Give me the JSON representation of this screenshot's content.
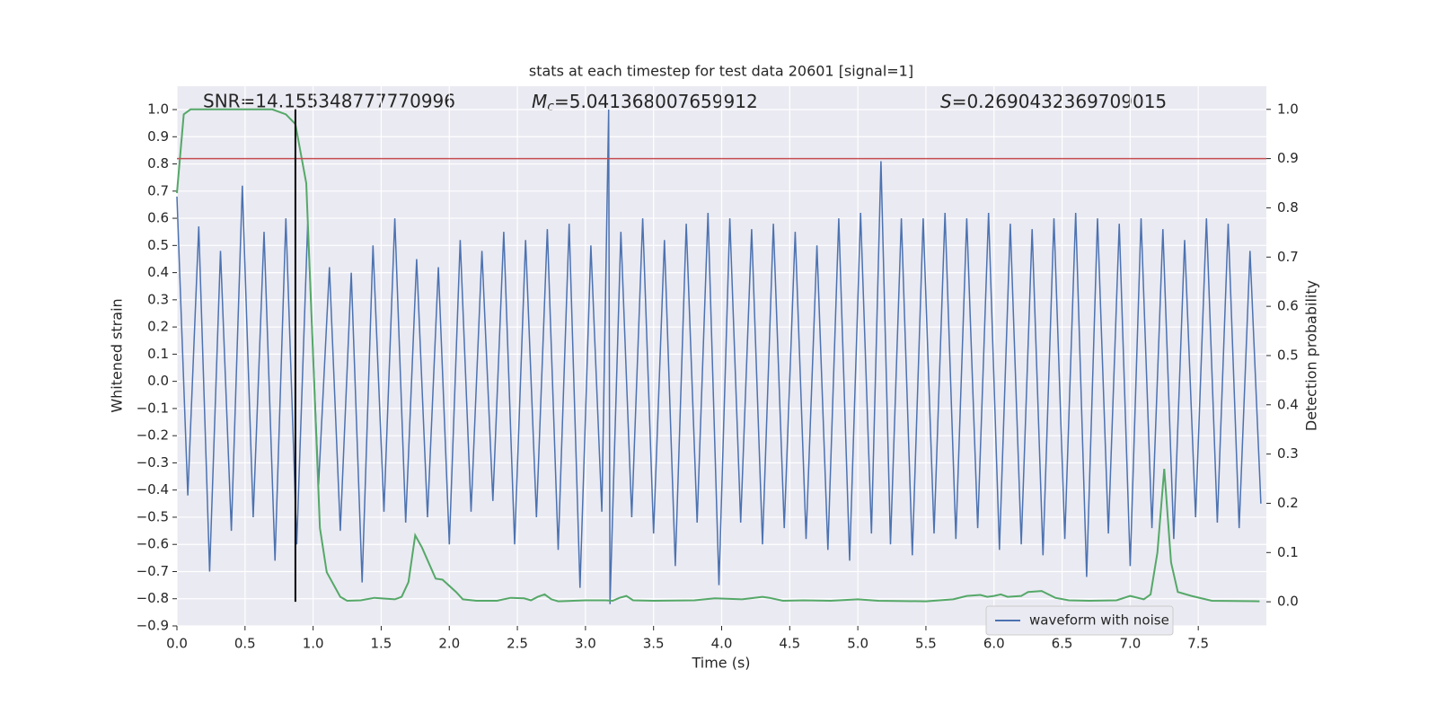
{
  "chart_data": {
    "type": "line",
    "title": "stats at each timestep for test data 20601 [signal=1]",
    "xlabel": "Time (s)",
    "ylabel": "Whitened strain",
    "y2label": "Detection probability",
    "annotations": [
      {
        "text": "SNR=14.155348777770996"
      },
      {
        "symbol": "M",
        "subscript": "c",
        "text": "=5.041368007659912"
      },
      {
        "symbol": "S",
        "text": "=0.2690432369709015"
      }
    ],
    "xlim": [
      0,
      8.0
    ],
    "ylim": [
      -0.9,
      1.086
    ],
    "y2lim": [
      -0.049,
      1.047
    ],
    "xticks": [
      {
        "value": 0,
        "label": "0.0"
      },
      {
        "value": 0.5,
        "label": "0.5"
      },
      {
        "value": 1,
        "label": "1.0"
      },
      {
        "value": 1.5,
        "label": "1.5"
      },
      {
        "value": 2,
        "label": "2.0"
      },
      {
        "value": 2.5,
        "label": "2.5"
      },
      {
        "value": 3,
        "label": "3.0"
      },
      {
        "value": 3.5,
        "label": "3.5"
      },
      {
        "value": 4,
        "label": "4.0"
      },
      {
        "value": 4.5,
        "label": "4.5"
      },
      {
        "value": 5,
        "label": "5.0"
      },
      {
        "value": 5.5,
        "label": "5.5"
      },
      {
        "value": 6,
        "label": "6.0"
      },
      {
        "value": 6.5,
        "label": "6.5"
      },
      {
        "value": 7,
        "label": "7.0"
      },
      {
        "value": 7.5,
        "label": "7.5"
      }
    ],
    "yticks": [
      {
        "value": -0.9,
        "label": "−0.9"
      },
      {
        "value": -0.8,
        "label": "−0.8"
      },
      {
        "value": -0.7,
        "label": "−0.7"
      },
      {
        "value": -0.6,
        "label": "−0.6"
      },
      {
        "value": -0.5,
        "label": "−0.5"
      },
      {
        "value": -0.4,
        "label": "−0.4"
      },
      {
        "value": -0.3,
        "label": "−0.3"
      },
      {
        "value": -0.2,
        "label": "−0.2"
      },
      {
        "value": -0.1,
        "label": "−0.1"
      },
      {
        "value": 0,
        "label": "0.0"
      },
      {
        "value": 0.1,
        "label": "0.1"
      },
      {
        "value": 0.2,
        "label": "0.2"
      },
      {
        "value": 0.3,
        "label": "0.3"
      },
      {
        "value": 0.4,
        "label": "0.4"
      },
      {
        "value": 0.5,
        "label": "0.5"
      },
      {
        "value": 0.6,
        "label": "0.6"
      },
      {
        "value": 0.7,
        "label": "0.7"
      },
      {
        "value": 0.8,
        "label": "0.8"
      },
      {
        "value": 0.9,
        "label": "0.9"
      },
      {
        "value": 1,
        "label": "1.0"
      }
    ],
    "y2ticks": [
      {
        "value": 0,
        "label": "0.0"
      },
      {
        "value": 0.1,
        "label": "0.1"
      },
      {
        "value": 0.2,
        "label": "0.2"
      },
      {
        "value": 0.3,
        "label": "0.3"
      },
      {
        "value": 0.4,
        "label": "0.4"
      },
      {
        "value": 0.5,
        "label": "0.5"
      },
      {
        "value": 0.6,
        "label": "0.6"
      },
      {
        "value": 0.7,
        "label": "0.7"
      },
      {
        "value": 0.8,
        "label": "0.8"
      },
      {
        "value": 0.9,
        "label": "0.9"
      },
      {
        "value": 1,
        "label": "1.0"
      }
    ],
    "grid": true,
    "legend": "lower right",
    "series": [
      {
        "name": "waveform with noise",
        "color": "#4c72b0",
        "x": [
          0,
          0.08,
          0.16,
          0.24,
          0.32,
          0.4,
          0.48,
          0.56,
          0.64,
          0.72,
          0.8,
          0.88,
          0.96,
          1.04,
          1.12,
          1.2,
          1.28,
          1.36,
          1.44,
          1.52,
          1.6,
          1.68,
          1.76,
          1.84,
          1.92,
          2.0,
          2.08,
          2.16,
          2.24,
          2.32,
          2.4,
          2.48,
          2.56,
          2.64,
          2.72,
          2.8,
          2.88,
          2.96,
          3.04,
          3.12,
          3.17,
          3.18,
          3.26,
          3.34,
          3.42,
          3.5,
          3.58,
          3.66,
          3.74,
          3.82,
          3.9,
          3.98,
          4.06,
          4.14,
          4.22,
          4.3,
          4.38,
          4.46,
          4.54,
          4.62,
          4.7,
          4.78,
          4.86,
          4.94,
          5.02,
          5.1,
          5.17,
          5.24,
          5.32,
          5.4,
          5.48,
          5.56,
          5.64,
          5.72,
          5.8,
          5.88,
          5.96,
          6.04,
          6.12,
          6.2,
          6.28,
          6.36,
          6.44,
          6.52,
          6.6,
          6.68,
          6.76,
          6.84,
          6.92,
          7.0,
          7.08,
          7.16,
          7.24,
          7.32,
          7.4,
          7.48,
          7.56,
          7.64,
          7.72,
          7.8,
          7.88,
          7.96
        ],
        "values": [
          0.68,
          -0.42,
          0.57,
          -0.7,
          0.48,
          -0.55,
          0.72,
          -0.5,
          0.55,
          -0.66,
          0.6,
          -0.6,
          0.58,
          -0.38,
          0.42,
          -0.55,
          0.4,
          -0.74,
          0.5,
          -0.48,
          0.6,
          -0.52,
          0.45,
          -0.5,
          0.42,
          -0.6,
          0.52,
          -0.48,
          0.48,
          -0.44,
          0.55,
          -0.6,
          0.52,
          -0.5,
          0.56,
          -0.62,
          0.58,
          -0.76,
          0.5,
          -0.48,
          1.0,
          -0.82,
          0.55,
          -0.5,
          0.6,
          -0.56,
          0.52,
          -0.68,
          0.58,
          -0.52,
          0.62,
          -0.75,
          0.6,
          -0.52,
          0.56,
          -0.6,
          0.58,
          -0.54,
          0.55,
          -0.58,
          0.5,
          -0.62,
          0.6,
          -0.66,
          0.62,
          -0.56,
          0.81,
          -0.6,
          0.6,
          -0.64,
          0.6,
          -0.56,
          0.62,
          -0.58,
          0.6,
          -0.54,
          0.62,
          -0.62,
          0.58,
          -0.6,
          0.56,
          -0.64,
          0.6,
          -0.58,
          0.62,
          -0.72,
          0.6,
          -0.56,
          0.58,
          -0.68,
          0.6,
          -0.54,
          0.56,
          -0.58,
          0.52,
          -0.5,
          0.6,
          -0.52,
          0.58,
          -0.54,
          0.48,
          -0.45
        ]
      },
      {
        "color": "#55a868",
        "axis": "y2",
        "x": [
          0,
          0.05,
          0.1,
          0.2,
          0.3,
          0.4,
          0.5,
          0.6,
          0.7,
          0.8,
          0.87,
          0.95,
          1.0,
          1.05,
          1.1,
          1.2,
          1.25,
          1.35,
          1.45,
          1.6,
          1.65,
          1.7,
          1.75,
          1.8,
          1.9,
          1.95,
          2.05,
          2.1,
          2.2,
          2.35,
          2.45,
          2.55,
          2.6,
          2.65,
          2.7,
          2.75,
          2.8,
          3.0,
          3.15,
          3.2,
          3.25,
          3.3,
          3.35,
          3.5,
          3.8,
          3.95,
          4.15,
          4.3,
          4.35,
          4.45,
          4.6,
          4.8,
          5.0,
          5.15,
          5.5,
          5.7,
          5.8,
          5.9,
          5.95,
          6.0,
          6.05,
          6.1,
          6.2,
          6.25,
          6.35,
          6.45,
          6.55,
          6.7,
          6.9,
          7.0,
          7.1,
          7.15,
          7.2,
          7.25,
          7.3,
          7.35,
          7.45,
          7.6,
          7.95
        ],
        "values": [
          0.83,
          0.99,
          1.0,
          1.0,
          1.0,
          1.0,
          1.0,
          1.0,
          1.0,
          0.99,
          0.97,
          0.85,
          0.5,
          0.15,
          0.06,
          0.01,
          0.002,
          0.003,
          0.008,
          0.005,
          0.01,
          0.04,
          0.135,
          0.11,
          0.047,
          0.045,
          0.02,
          0.005,
          0.002,
          0.002,
          0.008,
          0.007,
          0.003,
          0.01,
          0.015,
          0.005,
          0.001,
          0.003,
          0.003,
          0.002,
          0.008,
          0.012,
          0.003,
          0.002,
          0.003,
          0.007,
          0.005,
          0.01,
          0.008,
          0.002,
          0.003,
          0.002,
          0.005,
          0.002,
          0.001,
          0.005,
          0.012,
          0.014,
          0.01,
          0.012,
          0.015,
          0.01,
          0.012,
          0.02,
          0.022,
          0.008,
          0.003,
          0.002,
          0.003,
          0.012,
          0.005,
          0.015,
          0.1,
          0.27,
          0.08,
          0.02,
          0.012,
          0.002,
          0.001
        ]
      }
    ],
    "hlines": [
      {
        "value": 0.9,
        "axis": "y2",
        "color": "#c44e52"
      }
    ],
    "vlines": [
      {
        "value": 0.87,
        "ymin": 0,
        "ymax": 1,
        "axis": "y2",
        "color": "#000000"
      }
    ]
  }
}
